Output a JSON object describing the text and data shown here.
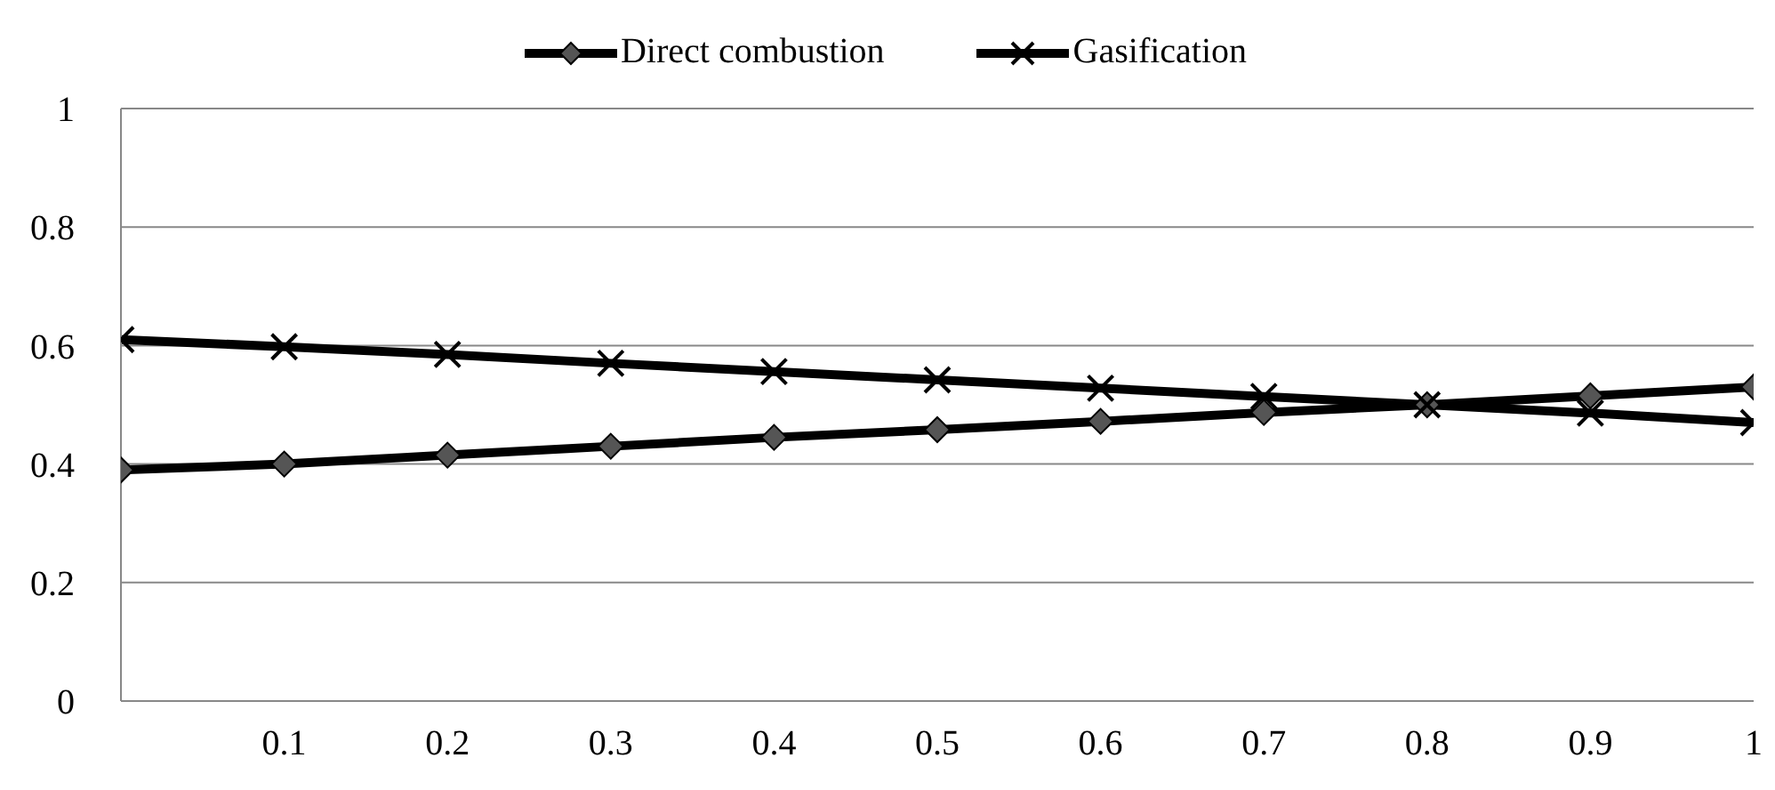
{
  "chart_data": {
    "type": "line",
    "x": [
      0,
      0.1,
      0.2,
      0.3,
      0.4,
      0.5,
      0.6,
      0.7,
      0.8,
      0.9,
      1
    ],
    "xlim": [
      0,
      1
    ],
    "xticks": [
      0.1,
      0.2,
      0.3,
      0.4,
      0.5,
      0.6,
      0.7,
      0.8,
      0.9,
      1
    ],
    "ylim": [
      0,
      1
    ],
    "yticks": [
      0,
      0.2,
      0.4,
      0.6,
      0.8,
      1
    ],
    "grid": "y",
    "legend": "top",
    "series": [
      {
        "name": "Direct combustion",
        "color": "#000000",
        "marker": "diamond",
        "values": [
          0.39,
          0.4,
          0.415,
          0.43,
          0.445,
          0.458,
          0.472,
          0.487,
          0.5,
          0.515,
          0.53
        ]
      },
      {
        "name": "Gasification",
        "color": "#000000",
        "marker": "cross",
        "values": [
          0.61,
          0.598,
          0.585,
          0.57,
          0.556,
          0.542,
          0.528,
          0.514,
          0.5,
          0.486,
          0.47
        ]
      }
    ]
  }
}
